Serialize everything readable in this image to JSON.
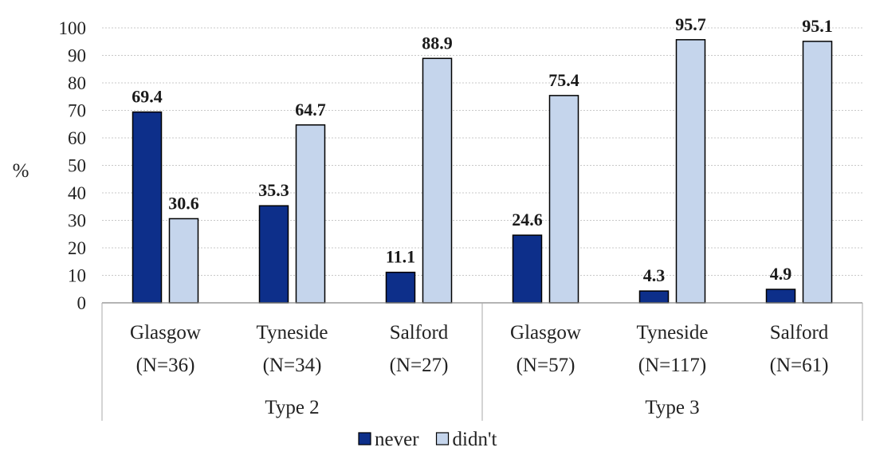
{
  "chart_data": {
    "type": "bar",
    "ylabel": "%",
    "ylim": [
      0,
      100
    ],
    "ytick_step": 10,
    "grid": true,
    "legend_position": "bottom",
    "groups": [
      "Type 2",
      "Type 3"
    ],
    "categories": [
      "Glasgow",
      "Tyneside",
      "Salford",
      "Glasgow",
      "Tyneside",
      "Salford"
    ],
    "category_counts": [
      "(N=36)",
      "(N=34)",
      "(N=27)",
      "(N=57)",
      "(N=117)",
      "(N=61)"
    ],
    "series": [
      {
        "name": "never",
        "color": "#0d2f8a",
        "values": [
          69.4,
          35.3,
          11.1,
          24.6,
          4.3,
          4.9
        ]
      },
      {
        "name": "didn't",
        "color": "#c5d5ec",
        "values": [
          30.6,
          64.7,
          88.9,
          75.4,
          95.7,
          95.1
        ]
      }
    ]
  }
}
